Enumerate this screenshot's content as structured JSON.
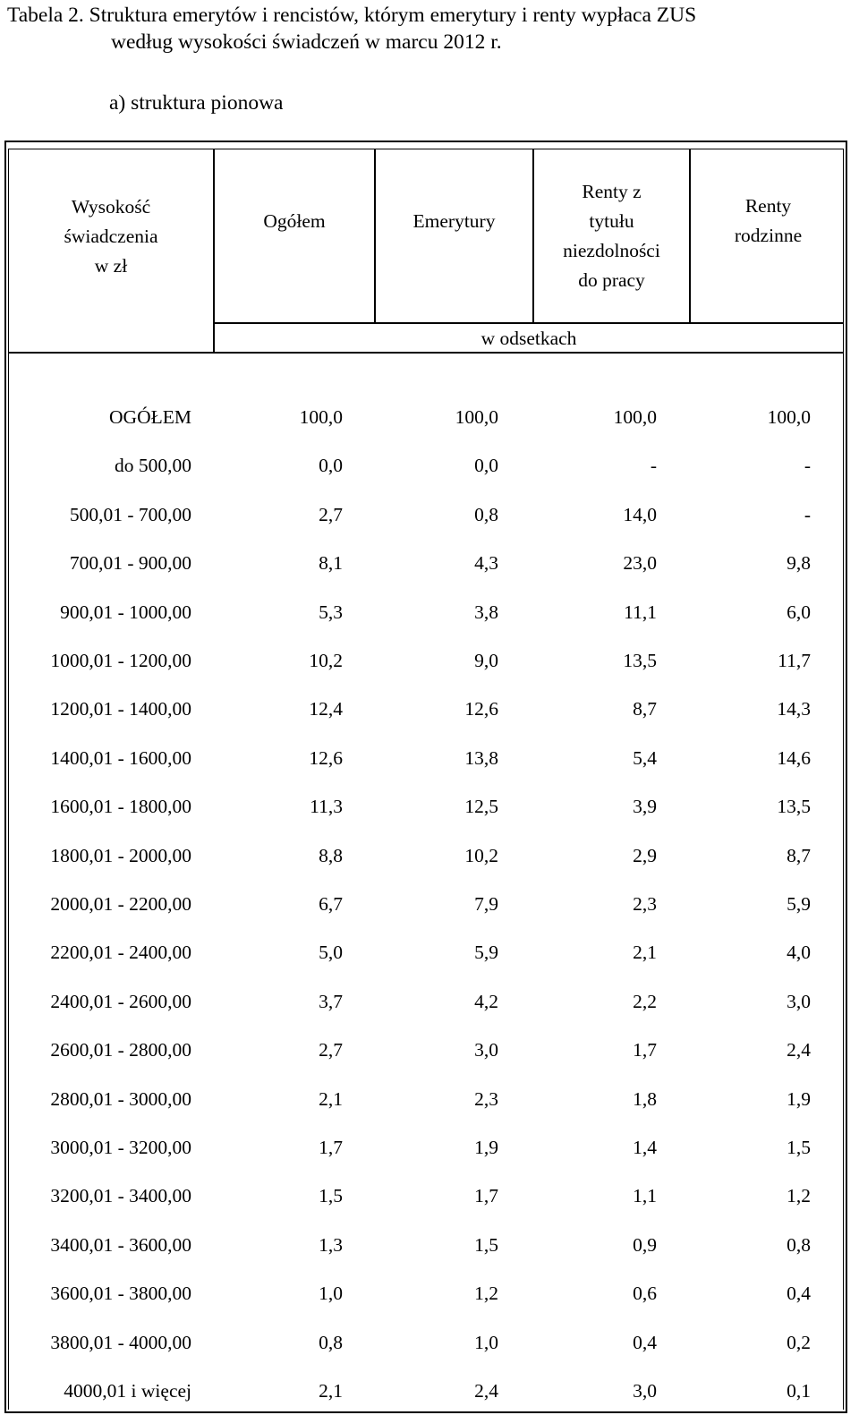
{
  "caption": {
    "line1": "Tabela 2.  Struktura emerytów i rencistów, którym emerytury i renty wypłaca ZUS",
    "line2": "według wysokości świadczeń w marcu 2012 r."
  },
  "subtitle": "a) struktura pionowa",
  "table": {
    "headers": {
      "col0": [
        "Wysokość",
        "świadczenia",
        "w zł"
      ],
      "col1": [
        "Ogółem"
      ],
      "col2": [
        "Emerytury"
      ],
      "col3": [
        "Renty z",
        "tytułu",
        "niezdolności",
        "do pracy"
      ],
      "col4": [
        "Renty",
        "rodzinne"
      ]
    },
    "unit_label": "w odsetkach",
    "rows": [
      [
        "OGÓŁEM",
        "100,0",
        "100,0",
        "100,0",
        "100,0"
      ],
      [
        "do 500,00",
        "0,0",
        "0,0",
        "-",
        "-"
      ],
      [
        "500,01  -  700,00",
        "2,7",
        "0,8",
        "14,0",
        "-"
      ],
      [
        "700,01  -  900,00",
        "8,1",
        "4,3",
        "23,0",
        "9,8"
      ],
      [
        "900,01 - 1000,00",
        "5,3",
        "3,8",
        "11,1",
        "6,0"
      ],
      [
        "1000,01 - 1200,00",
        "10,2",
        "9,0",
        "13,5",
        "11,7"
      ],
      [
        "1200,01 - 1400,00",
        "12,4",
        "12,6",
        "8,7",
        "14,3"
      ],
      [
        "1400,01 - 1600,00",
        "12,6",
        "13,8",
        "5,4",
        "14,6"
      ],
      [
        "1600,01 - 1800,00",
        "11,3",
        "12,5",
        "3,9",
        "13,5"
      ],
      [
        "1800,01 - 2000,00",
        "8,8",
        "10,2",
        "2,9",
        "8,7"
      ],
      [
        "2000,01 - 2200,00",
        "6,7",
        "7,9",
        "2,3",
        "5,9"
      ],
      [
        "2200,01 - 2400,00",
        "5,0",
        "5,9",
        "2,1",
        "4,0"
      ],
      [
        "2400,01 - 2600,00",
        "3,7",
        "4,2",
        "2,2",
        "3,0"
      ],
      [
        "2600,01 - 2800,00",
        "2,7",
        "3,0",
        "1,7",
        "2,4"
      ],
      [
        "2800,01 - 3000,00",
        "2,1",
        "2,3",
        "1,8",
        "1,9"
      ],
      [
        "3000,01 - 3200,00",
        "1,7",
        "1,9",
        "1,4",
        "1,5"
      ],
      [
        "3200,01 - 3400,00",
        "1,5",
        "1,7",
        "1,1",
        "1,2"
      ],
      [
        "3400,01 - 3600,00",
        "1,3",
        "1,5",
        "0,9",
        "0,8"
      ],
      [
        "3600,01 - 3800,00",
        "1,0",
        "1,2",
        "0,6",
        "0,4"
      ],
      [
        "3800,01 - 4000,00",
        "0,8",
        "1,0",
        "0,4",
        "0,2"
      ],
      [
        "4000,01 i więcej",
        "2,1",
        "2,4",
        "3,0",
        "0,1"
      ]
    ]
  }
}
